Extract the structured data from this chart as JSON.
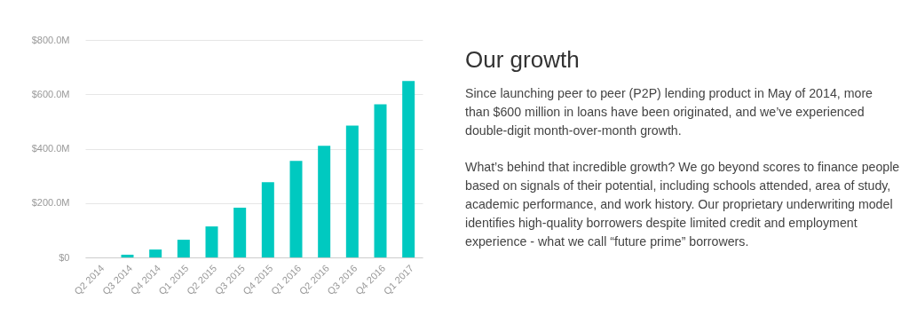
{
  "chart_data": {
    "type": "bar",
    "title": "Our growth",
    "annotations": [
      "Since launching peer to peer (P2P) lending product in May of 2014, more than $600 million in loans have been originated, and we’ve experienced double-digit month-over-month growth.",
      "What’s behind that incredible growth? We go beyond scores to finance people based on signals of their potential, including schools attended, area of study, academic performance, and work history. Our proprietary underwriting model identifies high-quality borrowers despite limited credit and employment experience - what we call “future prime” borrowers."
    ],
    "categories": [
      "Q2 2014",
      "Q3 2014",
      "Q4 2014",
      "Q1 2015",
      "Q2 2015",
      "Q3 2015",
      "Q4 2015",
      "Q1 2016",
      "Q2 2016",
      "Q3 2016",
      "Q4 2016",
      "Q1 2017"
    ],
    "values": [
      null,
      10,
      29,
      65,
      114,
      183,
      277,
      355,
      411,
      485,
      563,
      649
    ],
    "color": "#00c9c0",
    "ylim": [
      0,
      800
    ],
    "yticks": [
      {
        "value": 0,
        "label": "$0"
      },
      {
        "value": 200,
        "label": "$200.0M"
      },
      {
        "value": 400,
        "label": "$400.0M"
      },
      {
        "value": 600,
        "label": "$600.0M"
      },
      {
        "value": 800,
        "label": "$800.0M"
      }
    ],
    "grid": "y"
  }
}
